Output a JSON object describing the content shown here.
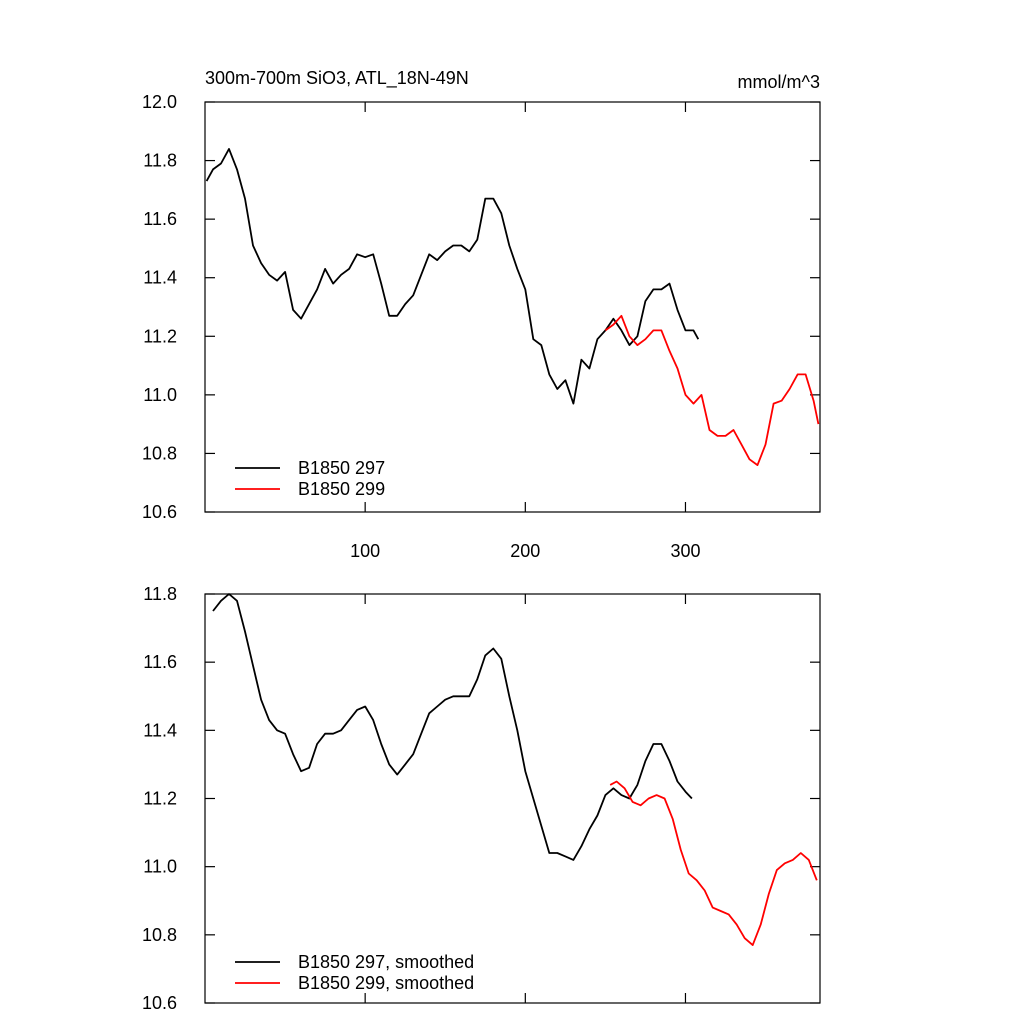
{
  "chart_data": [
    {
      "type": "line",
      "title": "300m-700m SiO3, ATL_18N-49N",
      "units": "mmol/m^3",
      "xlim": [
        0,
        384
      ],
      "xticks": [
        100,
        200,
        300
      ],
      "xtick_labels": true,
      "ylim": [
        10.6,
        12.0
      ],
      "yticks": [
        {
          "value": 10.6,
          "label": "10.6"
        },
        {
          "value": 10.8,
          "label": "10.8"
        },
        {
          "value": 11.0,
          "label": "11.0"
        },
        {
          "value": 11.2,
          "label": "11.2"
        },
        {
          "value": 11.4,
          "label": "11.4"
        },
        {
          "value": 11.6,
          "label": "11.6"
        },
        {
          "value": 11.8,
          "label": "11.8"
        },
        {
          "value": 12.0,
          "label": "12.0"
        }
      ],
      "legend": "lower left",
      "series": [
        {
          "name": "B1850 297",
          "color": "#000000",
          "x": [
            1,
            5,
            10,
            15,
            20,
            25,
            30,
            35,
            40,
            45,
            50,
            55,
            60,
            65,
            70,
            75,
            80,
            85,
            90,
            95,
            100,
            105,
            110,
            115,
            120,
            125,
            130,
            135,
            140,
            145,
            150,
            155,
            160,
            165,
            170,
            175,
            180,
            185,
            190,
            195,
            200,
            205,
            210,
            215,
            220,
            225,
            230,
            235,
            240,
            245,
            250,
            255,
            260,
            265,
            270,
            275,
            280,
            285,
            290,
            295,
            300,
            305,
            308
          ],
          "values": [
            11.73,
            11.77,
            11.79,
            11.84,
            11.77,
            11.67,
            11.51,
            11.45,
            11.41,
            11.39,
            11.42,
            11.29,
            11.26,
            11.31,
            11.36,
            11.43,
            11.38,
            11.41,
            11.43,
            11.48,
            11.47,
            11.48,
            11.38,
            11.27,
            11.27,
            11.31,
            11.34,
            11.41,
            11.48,
            11.46,
            11.49,
            11.51,
            11.51,
            11.49,
            11.53,
            11.67,
            11.67,
            11.62,
            11.51,
            11.43,
            11.36,
            11.19,
            11.17,
            11.07,
            11.02,
            11.05,
            10.97,
            11.12,
            11.09,
            11.19,
            11.22,
            11.26,
            11.22,
            11.17,
            11.2,
            11.32,
            11.36,
            11.36,
            11.38,
            11.29,
            11.22,
            11.22,
            11.19
          ]
        },
        {
          "name": "B1850 299",
          "color": "#ff0000",
          "x": [
            250,
            255,
            260,
            265,
            270,
            275,
            280,
            285,
            290,
            295,
            300,
            305,
            310,
            315,
            320,
            325,
            330,
            335,
            340,
            345,
            350,
            355,
            360,
            365,
            370,
            375,
            380,
            383
          ],
          "values": [
            11.22,
            11.24,
            11.27,
            11.2,
            11.17,
            11.19,
            11.22,
            11.22,
            11.15,
            11.09,
            11.0,
            10.97,
            11.0,
            10.88,
            10.86,
            10.86,
            10.88,
            10.83,
            10.78,
            10.76,
            10.83,
            10.97,
            10.98,
            11.02,
            11.07,
            11.07,
            10.98,
            10.9
          ]
        }
      ]
    },
    {
      "type": "line",
      "xlim": [
        0,
        384
      ],
      "xticks": [
        100,
        200,
        300
      ],
      "xtick_labels": false,
      "ylim": [
        10.6,
        11.8
      ],
      "yticks": [
        {
          "value": 10.6,
          "label": "10.6"
        },
        {
          "value": 10.8,
          "label": "10.8"
        },
        {
          "value": 11.0,
          "label": "11.0"
        },
        {
          "value": 11.2,
          "label": "11.2"
        },
        {
          "value": 11.4,
          "label": "11.4"
        },
        {
          "value": 11.6,
          "label": "11.6"
        },
        {
          "value": 11.8,
          "label": "11.8"
        }
      ],
      "legend": "lower left",
      "series": [
        {
          "name": "B1850 297, smoothed",
          "color": "#000000",
          "x": [
            5,
            10,
            15,
            20,
            25,
            30,
            35,
            40,
            45,
            50,
            55,
            60,
            65,
            70,
            75,
            80,
            85,
            90,
            95,
            100,
            105,
            110,
            115,
            120,
            125,
            130,
            135,
            140,
            145,
            150,
            155,
            160,
            165,
            170,
            175,
            180,
            185,
            190,
            195,
            200,
            205,
            210,
            215,
            220,
            225,
            230,
            235,
            240,
            245,
            250,
            255,
            260,
            265,
            270,
            275,
            280,
            285,
            290,
            295,
            300,
            304
          ],
          "values": [
            11.75,
            11.78,
            11.8,
            11.78,
            11.69,
            11.59,
            11.49,
            11.43,
            11.4,
            11.39,
            11.33,
            11.28,
            11.29,
            11.36,
            11.39,
            11.39,
            11.4,
            11.43,
            11.46,
            11.47,
            11.43,
            11.36,
            11.3,
            11.27,
            11.3,
            11.33,
            11.39,
            11.45,
            11.47,
            11.49,
            11.5,
            11.5,
            11.5,
            11.55,
            11.62,
            11.64,
            11.61,
            11.5,
            11.4,
            11.28,
            11.2,
            11.12,
            11.04,
            11.04,
            11.03,
            11.02,
            11.06,
            11.11,
            11.15,
            11.21,
            11.23,
            11.21,
            11.2,
            11.24,
            11.31,
            11.36,
            11.36,
            11.31,
            11.25,
            11.22,
            11.2
          ]
        },
        {
          "name": "B1850 299, smoothed",
          "color": "#ff0000",
          "x": [
            253,
            257,
            262,
            267,
            272,
            277,
            282,
            287,
            292,
            297,
            302,
            307,
            312,
            317,
            322,
            327,
            332,
            337,
            342,
            347,
            352,
            357,
            362,
            367,
            372,
            377,
            382
          ],
          "values": [
            11.24,
            11.25,
            11.23,
            11.19,
            11.18,
            11.2,
            11.21,
            11.2,
            11.14,
            11.05,
            10.98,
            10.96,
            10.93,
            10.88,
            10.87,
            10.86,
            10.83,
            10.79,
            10.77,
            10.83,
            10.92,
            10.99,
            11.01,
            11.02,
            11.04,
            11.02,
            10.96
          ]
        }
      ]
    }
  ]
}
